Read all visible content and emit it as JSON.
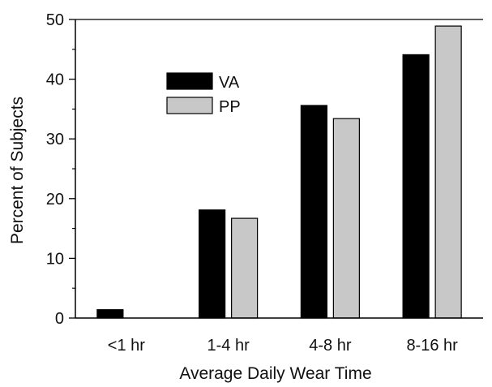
{
  "chart_data": {
    "type": "bar",
    "title": "",
    "xlabel": "Average Daily Wear Time",
    "ylabel": "Percent of Subjects",
    "categories": [
      "<1 hr",
      "1-4 hr",
      "4-8 hr",
      "8-16 hr"
    ],
    "ylim": [
      0,
      50
    ],
    "yticks": [
      "0",
      "10",
      "20",
      "30",
      "40",
      "50"
    ],
    "series": [
      {
        "name": "VA",
        "values": [
          1.4,
          18.1,
          35.6,
          44.1
        ],
        "color": "#000000"
      },
      {
        "name": "PP",
        "values": [
          0,
          16.7,
          33.4,
          48.9
        ],
        "color": "#c8c8c8"
      }
    ],
    "grid": false,
    "legend_position": "upper-left"
  }
}
